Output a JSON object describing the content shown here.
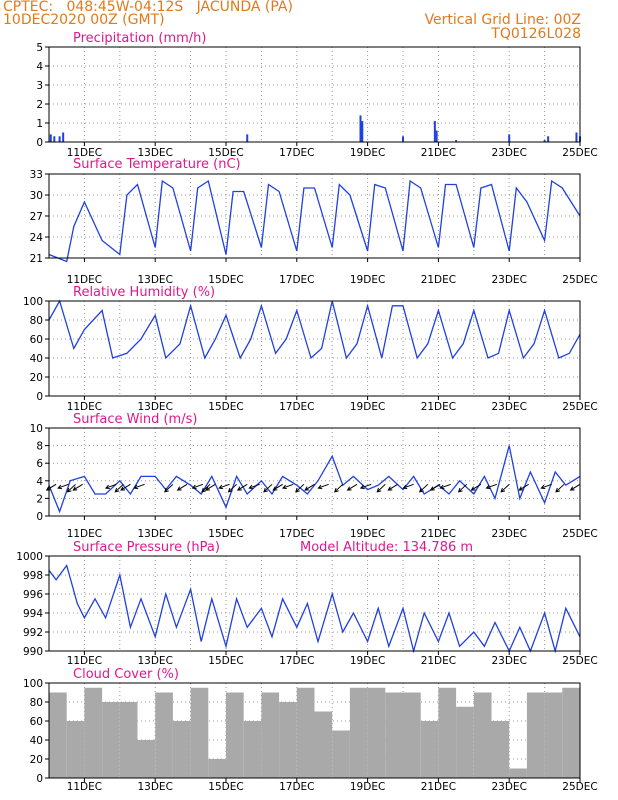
{
  "header": {
    "left_line1": "CPTEC:   048:45W-04:12S   JACUNDA (PA)",
    "left_line2": "10DEC2020 00Z (GMT)",
    "right_line1": "Vertical Grid Line: 00Z",
    "right_line2": "TQ0126L028"
  },
  "colors": {
    "header": "#e07a1a",
    "title": "#e0188c",
    "line": "#2040e0",
    "cloud": "#a9a9a9"
  },
  "x_axis": {
    "tick_labels": [
      "11DEC",
      "13DEC",
      "15DEC",
      "17DEC",
      "19DEC",
      "21DEC",
      "23DEC",
      "25DEC"
    ],
    "tick_days": [
      1,
      3,
      5,
      7,
      9,
      11,
      13,
      15
    ],
    "range_days": [
      0,
      15
    ],
    "vertical_grid": "00Z daily"
  },
  "chart_data": [
    {
      "type": "bar",
      "title": "Precipitation (mm/h)",
      "ylim": [
        0,
        5
      ],
      "yticks": [
        0,
        1,
        2,
        3,
        4,
        5
      ],
      "x_days": [
        0.05,
        0.15,
        0.3,
        0.4,
        5.6,
        8.8,
        8.85,
        10.0,
        10.9,
        10.95,
        11.5,
        13.0,
        14.0,
        14.1,
        14.9,
        15.0
      ],
      "values": [
        0.4,
        0.3,
        0.3,
        0.5,
        0.4,
        1.4,
        1.1,
        0.3,
        1.1,
        0.6,
        0.1,
        0.4,
        0.1,
        0.3,
        0.5,
        0.3
      ]
    },
    {
      "type": "line",
      "title": "Surface Temperature (nC)",
      "ylim": [
        21,
        33
      ],
      "yticks": [
        21,
        24,
        27,
        30,
        33
      ],
      "x_days": [
        0,
        0.5,
        0.7,
        1.0,
        1.5,
        2.0,
        2.2,
        2.5,
        3.0,
        3.2,
        3.5,
        4.0,
        4.2,
        4.5,
        5.0,
        5.2,
        5.5,
        6.0,
        6.2,
        6.5,
        7.0,
        7.2,
        7.5,
        8.0,
        8.2,
        8.5,
        9.0,
        9.2,
        9.5,
        10.0,
        10.2,
        10.5,
        11.0,
        11.2,
        11.5,
        12.0,
        12.2,
        12.5,
        13.0,
        13.2,
        13.5,
        14.0,
        14.2,
        14.5,
        15.0
      ],
      "values": [
        21.5,
        20.5,
        25.5,
        29.0,
        23.5,
        21.5,
        30.0,
        31.5,
        22.5,
        32.0,
        31.0,
        22.0,
        31.0,
        32.0,
        21.5,
        30.5,
        30.5,
        22.5,
        31.5,
        30.5,
        22.0,
        31.0,
        31.0,
        22.5,
        31.5,
        30.0,
        22.0,
        31.5,
        31.0,
        22.0,
        32.0,
        31.0,
        22.5,
        31.5,
        31.5,
        22.5,
        31.0,
        31.5,
        22.0,
        31.0,
        29.0,
        23.5,
        32.0,
        31.0,
        27.0
      ]
    },
    {
      "type": "line",
      "title": "Relative Humidity (%)",
      "ylim": [
        0,
        100
      ],
      "yticks": [
        0,
        20,
        40,
        60,
        80,
        100
      ],
      "x_days": [
        0,
        0.3,
        0.7,
        1.0,
        1.5,
        1.8,
        2.2,
        2.6,
        3.0,
        3.3,
        3.7,
        4.0,
        4.4,
        4.7,
        5.0,
        5.4,
        5.7,
        6.0,
        6.4,
        6.7,
        7.0,
        7.4,
        7.7,
        8.0,
        8.4,
        8.7,
        9.0,
        9.4,
        9.7,
        10.0,
        10.4,
        10.7,
        11.0,
        11.4,
        11.7,
        12.0,
        12.4,
        12.7,
        13.0,
        13.4,
        13.7,
        14.0,
        14.4,
        14.7,
        15.0
      ],
      "values": [
        80,
        100,
        50,
        70,
        90,
        40,
        45,
        60,
        85,
        40,
        55,
        95,
        40,
        60,
        85,
        40,
        60,
        95,
        45,
        60,
        90,
        40,
        50,
        100,
        40,
        55,
        95,
        40,
        95,
        95,
        40,
        55,
        90,
        40,
        55,
        90,
        40,
        45,
        90,
        40,
        55,
        90,
        40,
        45,
        65
      ]
    },
    {
      "type": "line",
      "title": "Surface Wind (m/s)",
      "ylim": [
        0,
        10
      ],
      "yticks": [
        0,
        2,
        4,
        6,
        8,
        10
      ],
      "x_days": [
        0,
        0.3,
        0.6,
        1.0,
        1.3,
        1.6,
        2.0,
        2.3,
        2.6,
        3.0,
        3.3,
        3.6,
        4.0,
        4.3,
        4.6,
        5.0,
        5.3,
        5.6,
        6.0,
        6.3,
        6.6,
        7.0,
        7.3,
        7.6,
        8.0,
        8.3,
        8.6,
        9.0,
        9.3,
        9.6,
        10.0,
        10.3,
        10.6,
        11.0,
        11.3,
        11.6,
        12.0,
        12.3,
        12.6,
        13.0,
        13.3,
        13.6,
        14.0,
        14.3,
        14.6,
        15.0
      ],
      "values": [
        3.5,
        0.5,
        4.0,
        4.5,
        2.5,
        2.5,
        4.0,
        2.5,
        4.5,
        4.5,
        3.0,
        4.5,
        3.5,
        2.5,
        4.5,
        1.0,
        4.5,
        2.5,
        4.0,
        2.5,
        4.5,
        3.5,
        2.5,
        4.0,
        6.8,
        3.5,
        4.5,
        3.0,
        3.5,
        4.5,
        3.0,
        4.5,
        2.5,
        3.5,
        2.5,
        4.0,
        2.5,
        4.5,
        2.0,
        8.0,
        2.0,
        5.0,
        1.5,
        5.0,
        3.5,
        4.5
      ],
      "barbs_days": [
        0.2,
        0.55,
        0.75,
        0.95,
        1.9,
        2.1,
        2.3,
        2.7,
        3.5,
        3.9,
        4.35,
        4.55,
        4.7,
        5.1,
        5.3,
        5.6,
        5.95,
        6.3,
        6.6,
        6.9,
        7.2,
        7.5,
        7.9,
        8.3,
        8.7,
        9.1,
        9.5,
        9.85,
        10.3,
        10.7,
        11.05,
        11.35,
        11.8,
        12.2,
        12.65,
        13.0,
        13.55,
        14.2,
        14.55,
        15.0
      ]
    },
    {
      "type": "line",
      "title": "Surface Pressure (hPa)",
      "annotation": "Model Altitude: 134.786 m",
      "ylim": [
        990,
        1000
      ],
      "yticks": [
        990,
        992,
        994,
        996,
        998,
        1000
      ],
      "x_days": [
        0,
        0.2,
        0.5,
        0.8,
        1.0,
        1.3,
        1.6,
        2.0,
        2.3,
        2.6,
        3.0,
        3.3,
        3.6,
        4.0,
        4.3,
        4.6,
        5.0,
        5.3,
        5.6,
        6.0,
        6.3,
        6.6,
        7.0,
        7.3,
        7.6,
        8.0,
        8.3,
        8.6,
        9.0,
        9.3,
        9.6,
        10.0,
        10.3,
        10.6,
        11.0,
        11.3,
        11.6,
        12.0,
        12.3,
        12.6,
        13.0,
        13.3,
        13.6,
        14.0,
        14.3,
        14.6,
        15.0
      ],
      "values": [
        998.5,
        997.5,
        999.0,
        995.0,
        993.5,
        995.5,
        993.5,
        998.0,
        992.5,
        995.5,
        991.5,
        996.0,
        992.5,
        996.5,
        991.0,
        995.5,
        990.5,
        995.5,
        992.5,
        994.5,
        991.5,
        995.5,
        992.5,
        995.0,
        991.0,
        996.0,
        992.0,
        994.0,
        991.0,
        994.5,
        990.5,
        994.5,
        990.0,
        994.0,
        991.0,
        994.0,
        990.5,
        992.0,
        990.5,
        993.0,
        990.0,
        992.5,
        990.0,
        994.0,
        990.0,
        994.5,
        991.5
      ]
    },
    {
      "type": "bar",
      "title": "Cloud Cover (%)",
      "ylim": [
        0,
        100
      ],
      "yticks": [
        0,
        20,
        40,
        60,
        80,
        100
      ],
      "x_days": [
        0,
        0.5,
        1.0,
        1.5,
        2.0,
        2.5,
        3.0,
        3.5,
        4.0,
        4.5,
        5.0,
        5.5,
        6.0,
        6.5,
        7.0,
        7.5,
        8.0,
        8.5,
        9.0,
        9.5,
        10.0,
        10.5,
        11.0,
        11.5,
        12.0,
        12.5,
        13.0,
        13.5,
        14.0,
        14.5,
        15.0
      ],
      "values": [
        90,
        60,
        95,
        80,
        80,
        40,
        90,
        60,
        95,
        20,
        90,
        60,
        90,
        80,
        95,
        70,
        50,
        95,
        95,
        90,
        90,
        60,
        95,
        75,
        90,
        60,
        10,
        90,
        90,
        95,
        95
      ]
    }
  ]
}
